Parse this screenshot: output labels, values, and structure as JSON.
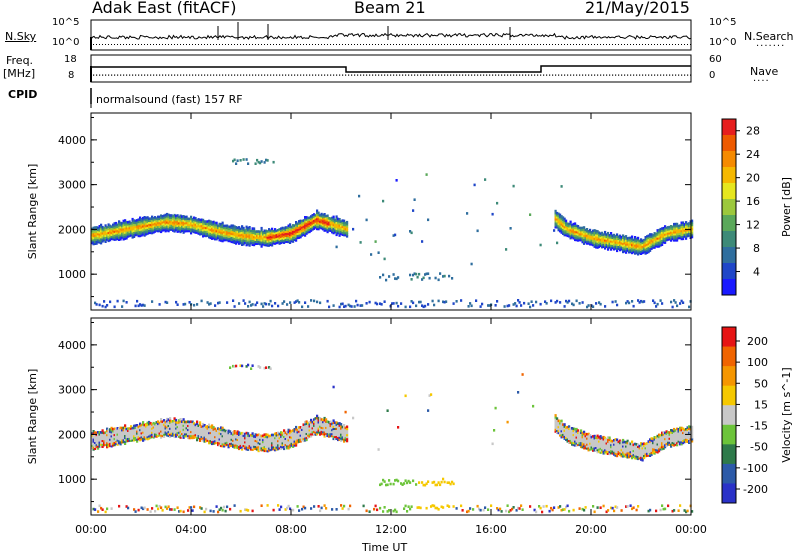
{
  "header": {
    "station": "Adak East (fitACF)",
    "beam": "Beam 21",
    "date": "21/May/2015"
  },
  "strip": {
    "nsky_label": "N.Sky",
    "nsky_ticks": [
      "10^5",
      "10^0"
    ],
    "nsearch_label": "N.Search",
    "nsearch_ticks": [
      "10^5",
      "10^0"
    ],
    "freq_label": "Freq.",
    "freq_unit": "[MHz]",
    "freq_ticks": [
      "18",
      "8"
    ],
    "nave_label": "Nave",
    "nave_ticks": [
      "60",
      "0"
    ],
    "cpid_label": "CPID",
    "cpid_text": "normalsound (fast) 157 RF"
  },
  "colors": {
    "power": [
      "#1a1aff",
      "#1f46c8",
      "#2f6e9e",
      "#3d8a78",
      "#5aa85a",
      "#9cc83c",
      "#e6e61e",
      "#f5b800",
      "#f58a00",
      "#ee5a00",
      "#e61e1e"
    ],
    "velocity": [
      "#2a32c8",
      "#2c5aa8",
      "#2e7a4a",
      "#6cc43a",
      "#c8c8c8",
      "#f5c800",
      "#f59600",
      "#f06400",
      "#e61414"
    ]
  },
  "chart_data": [
    {
      "type": "heatmap",
      "name": "Power",
      "xlabel": "Time UT",
      "ylabel": "Slant Range [km]",
      "x_ticks": [
        "00:00",
        "04:00",
        "08:00",
        "12:00",
        "16:00",
        "20:00",
        "00:00"
      ],
      "xlim_hours": [
        0,
        24
      ],
      "y_ticks": [
        1000,
        2000,
        3000,
        4000
      ],
      "ylim": [
        200,
        4600
      ],
      "colorbar_label": "Power [dB]",
      "colorbar_ticks": [
        4,
        8,
        12,
        16,
        20,
        24,
        28
      ],
      "colorbar_range": [
        0,
        30
      ],
      "echo_band": {
        "hours": [
          0,
          1,
          2,
          3,
          4,
          5,
          6,
          7,
          8,
          9,
          10.2
        ],
        "range_km": [
          1850,
          1950,
          2050,
          2150,
          2100,
          1950,
          1850,
          1800,
          1900,
          2200,
          2000
        ]
      },
      "late_band": {
        "hours": [
          18,
          19,
          20,
          21,
          22,
          23,
          24
        ],
        "range_km": [
          2500,
          2000,
          1800,
          1700,
          1600,
          1900,
          2000
        ]
      }
    },
    {
      "type": "heatmap",
      "name": "Velocity",
      "xlabel": "Time UT",
      "ylabel": "Slant Range [km]",
      "x_ticks": [
        "00:00",
        "04:00",
        "08:00",
        "12:00",
        "16:00",
        "20:00",
        "00:00"
      ],
      "xlim_hours": [
        0,
        24
      ],
      "y_ticks": [
        1000,
        2000,
        3000,
        4000
      ],
      "ylim": [
        200,
        4600
      ],
      "colorbar_label": "Velocity [m s^-1]",
      "colorbar_ticks": [
        "200",
        "100",
        "50",
        "15",
        "-15",
        "-50",
        "-100",
        "-200"
      ],
      "colorbar_range": [
        -250,
        250
      ]
    }
  ]
}
